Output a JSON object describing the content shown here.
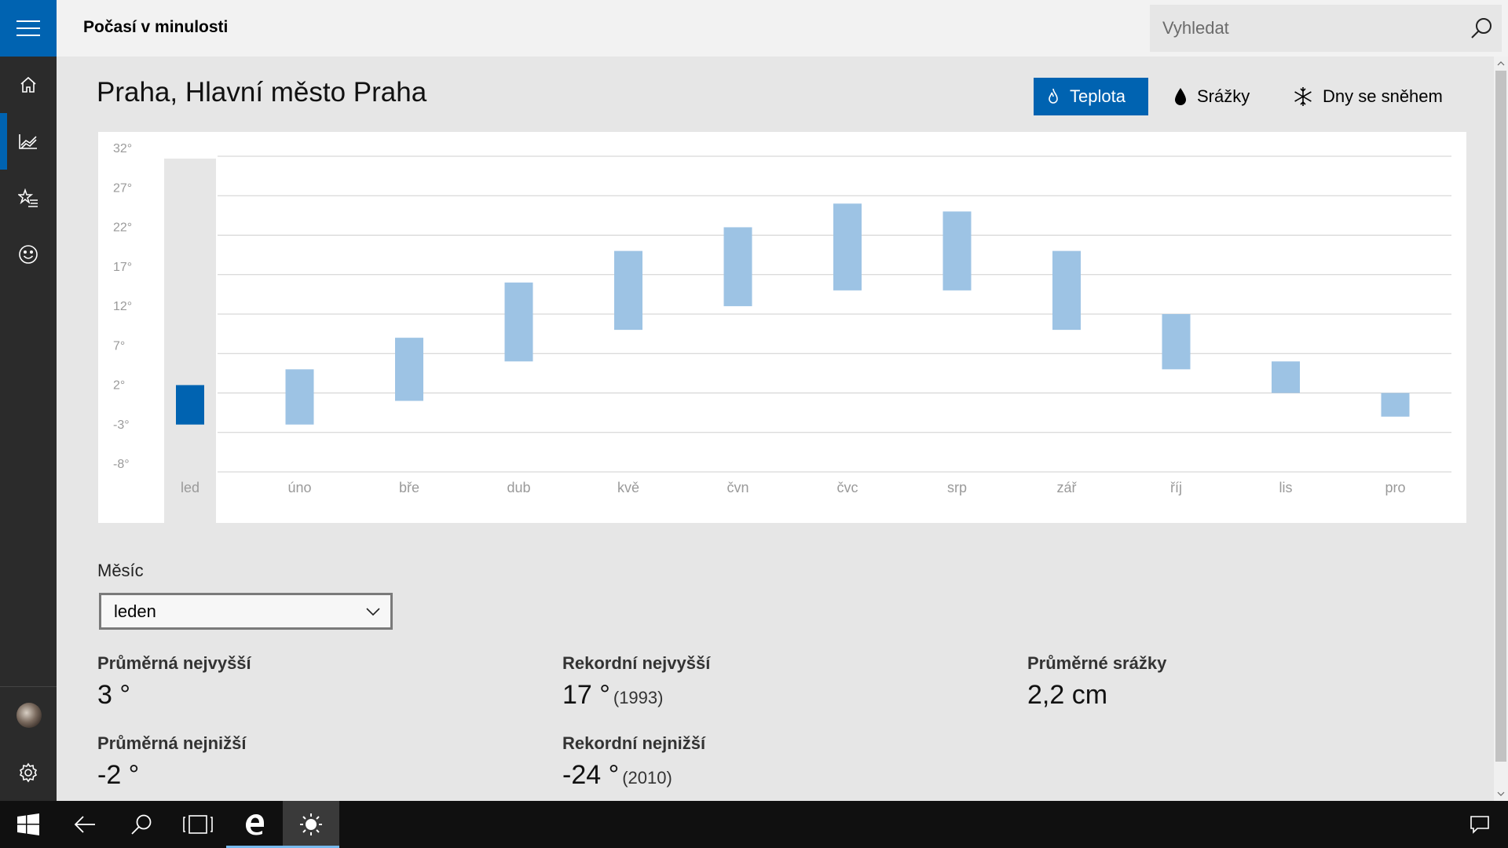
{
  "app": {
    "title": "Počasí v minulosti"
  },
  "search": {
    "placeholder": "Vyhledat"
  },
  "nav": {
    "items": [
      {
        "name": "home",
        "icon": "home-icon"
      },
      {
        "name": "historical-weather",
        "icon": "chart-icon",
        "active": true
      },
      {
        "name": "favorites",
        "icon": "star-list-icon"
      },
      {
        "name": "feedback",
        "icon": "smiley-icon"
      }
    ],
    "bottom": [
      {
        "name": "profile",
        "icon": "avatar"
      },
      {
        "name": "settings",
        "icon": "gear-icon"
      }
    ]
  },
  "location": {
    "title": "Praha, Hlavní město Praha"
  },
  "toggle": {
    "temperature": "Teplota",
    "precipitation": "Srážky",
    "snow_days": "Dny se sněhem",
    "active": "temperature"
  },
  "colors": {
    "accent": "#0063b1",
    "bar": "#9dc3e4",
    "bar_selected": "#0063b1"
  },
  "chart_data": {
    "type": "bar",
    "subtype": "floating-range",
    "categories": [
      "led",
      "úno",
      "bře",
      "dub",
      "kvě",
      "čvn",
      "čvc",
      "srp",
      "zář",
      "říj",
      "lis",
      "pro"
    ],
    "y_tick_labels": [
      "32°",
      "27°",
      "22°",
      "17°",
      "12°",
      "7°",
      "2°",
      "-3°",
      "-8°"
    ],
    "ylim": [
      -8,
      32
    ],
    "series": [
      {
        "low": [
          -2,
          -2,
          1,
          6,
          10,
          13,
          15,
          15,
          10,
          5,
          2,
          -1
        ]
      },
      {
        "high": [
          3,
          5,
          9,
          16,
          20,
          23,
          26,
          25,
          20,
          12,
          6,
          2
        ]
      }
    ],
    "selected_index": 0,
    "grid": true
  },
  "month": {
    "label": "Měsíc",
    "selected": "leden"
  },
  "stats": {
    "avg_high": {
      "label": "Průměrná nejvyšší",
      "value": "3 °"
    },
    "avg_low": {
      "label": "Průměrná nejnižší",
      "value": "-2 °"
    },
    "record_high": {
      "label": "Rekordní nejvyšší",
      "value": "17 °",
      "year": "(1993)"
    },
    "record_low": {
      "label": "Rekordní nejnižší",
      "value": "-24 °",
      "year": "(2010)"
    },
    "avg_precip": {
      "label": "Průměrné srážky",
      "value": "2,2 cm"
    }
  },
  "taskbar": {
    "items": [
      "windows-start-icon",
      "back-icon",
      "search-icon",
      "task-view-icon",
      "edge-icon",
      "weather-app-icon",
      "action-center-icon"
    ]
  }
}
